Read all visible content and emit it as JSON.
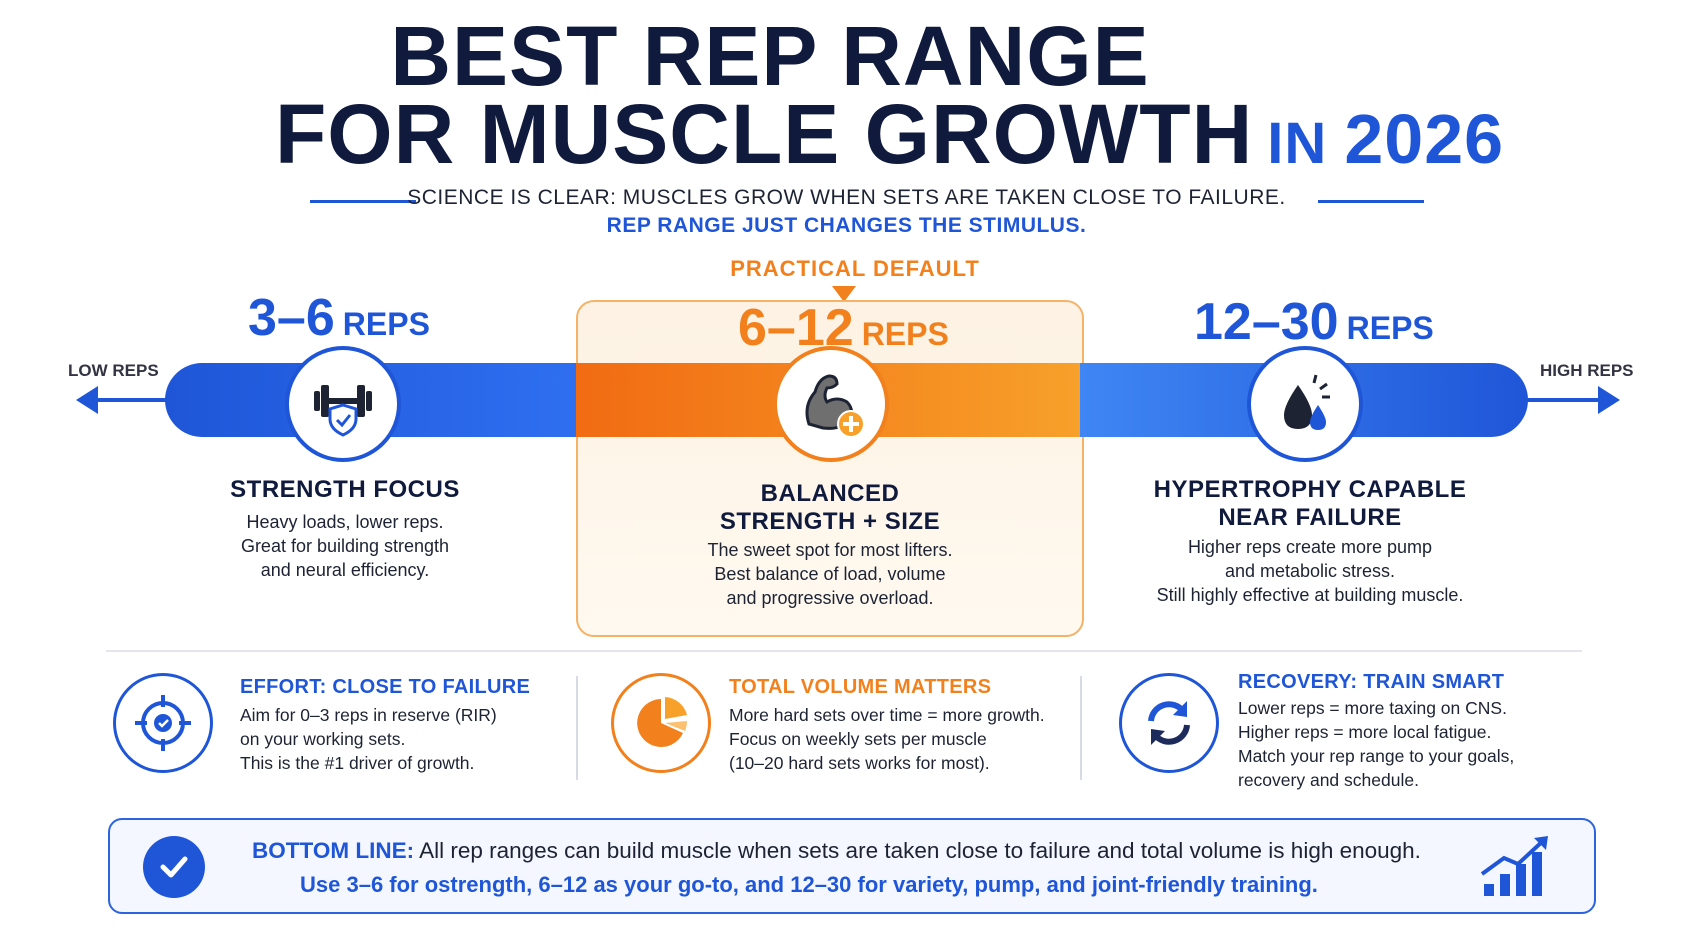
{
  "header": {
    "title_line1": "BEST REP RANGE",
    "title_line2": "FOR MUSCLE GROWTH",
    "title_in": "IN",
    "title_year": "2026",
    "subtitle_line1": "SCIENCE IS CLEAR: MUSCLES GROW WHEN SETS ARE TAKEN CLOSE TO FAILURE.",
    "subtitle_line2": "REP RANGE JUST CHANGES THE STIMULUS."
  },
  "scale": {
    "low_label": "LOW REPS",
    "high_label": "HIGH REPS",
    "practical_label": "PRACTICAL DEFAULT"
  },
  "ranges": [
    {
      "range": "3–6",
      "unit": "REPS",
      "color": "#1f56d8",
      "icon": "dumbbell-shield-icon",
      "heading_line1": "STRENGTH FOCUS",
      "heading_line2": "",
      "desc": [
        "Heavy loads, lower reps.",
        "Great for building strength",
        "and neural efficiency."
      ]
    },
    {
      "range": "6–12",
      "unit": "REPS",
      "color": "#f2801c",
      "icon": "flexed-arm-icon",
      "heading_line1": "BALANCED",
      "heading_line2": "STRENGTH + SIZE",
      "desc": [
        "The sweet spot for most lifters.",
        "Best balance of load, volume",
        "and progressive overload."
      ]
    },
    {
      "range": "12–30",
      "unit": "REPS",
      "color": "#1f56d8",
      "icon": "sweat-drop-icon",
      "heading_line1": "HYPERTROPHY CAPABLE",
      "heading_line2": "NEAR FAILURE",
      "desc": [
        "Higher reps create more pump",
        "and metabolic stress.",
        "Still highly effective at building muscle."
      ]
    }
  ],
  "factors": [
    {
      "icon": "target-icon",
      "title": "EFFORT: CLOSE TO FAILURE",
      "title_color": "#1f56d8",
      "lines": [
        "Aim for 0–3 reps in reserve (RIR)",
        "on your working sets.",
        "This is the #1 driver of growth."
      ]
    },
    {
      "icon": "pie-chart-icon",
      "title": "TOTAL VOLUME MATTERS",
      "title_color": "#f2801c",
      "lines": [
        "More hard sets over time = more growth.",
        "Focus on weekly sets per muscle",
        "(10–20 hard sets works for most)."
      ]
    },
    {
      "icon": "refresh-cycle-icon",
      "title": "RECOVERY: TRAIN SMART",
      "title_color": "#1f56d8",
      "lines": [
        "Lower reps = more taxing on CNS.",
        "Higher reps = more local fatigue.",
        "Match your rep range to your goals,",
        "recovery and schedule."
      ]
    }
  ],
  "bottom_line": {
    "label": "BOTTOM LINE:",
    "text": "All rep ranges can build muscle when sets are taken close to failure and total volume is high enough.",
    "line2": "Use 3–6 for ostrength, 6–12 as your go-to, and 12–30 for variety, pump, and joint-friendly training.",
    "icons": [
      "check-circle-icon",
      "growth-chart-icon"
    ]
  }
}
